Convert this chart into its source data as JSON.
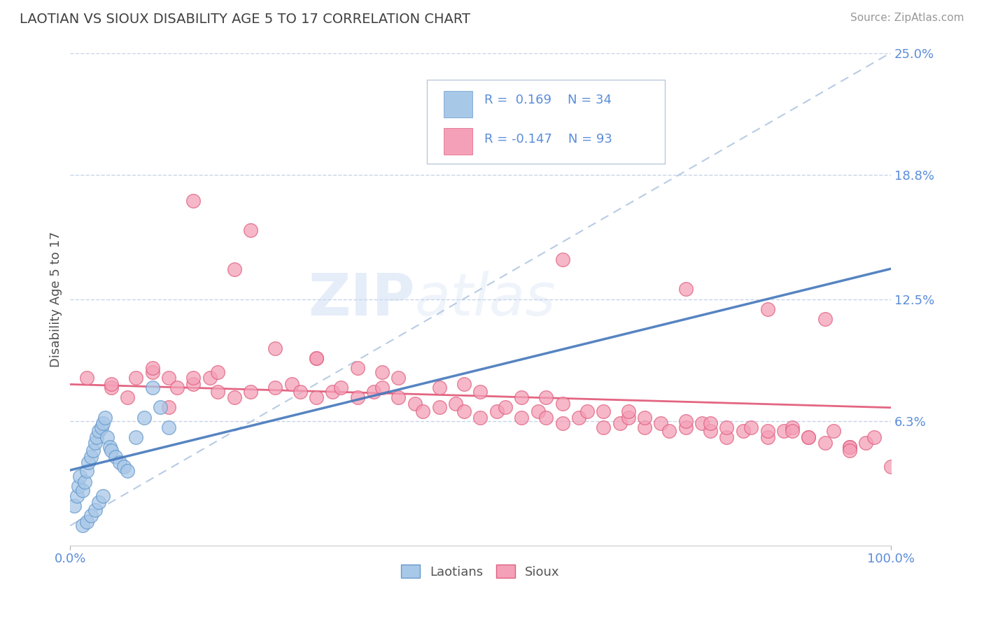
{
  "title": "LAOTIAN VS SIOUX DISABILITY AGE 5 TO 17 CORRELATION CHART",
  "source": "Source: ZipAtlas.com",
  "ylabel": "Disability Age 5 to 17",
  "xlim": [
    0,
    1.0
  ],
  "ylim": [
    0,
    0.25
  ],
  "ytick_vals": [
    0.063,
    0.125,
    0.188,
    0.25
  ],
  "ytick_labels": [
    "6.3%",
    "12.5%",
    "18.8%",
    "25.0%"
  ],
  "xtick_vals": [
    0.0,
    1.0
  ],
  "xtick_labels": [
    "0.0%",
    "100.0%"
  ],
  "laotian_color": "#a8c8e8",
  "laotian_edge": "#6699cc",
  "sioux_color": "#f4a0b8",
  "sioux_edge": "#e06080",
  "trend_laotian_color": "#4477bb",
  "trend_sioux_color": "#e05575",
  "trend_ref_color": "#b8cce4",
  "R_laotian": 0.169,
  "N_laotian": 34,
  "R_sioux": -0.147,
  "N_sioux": 93,
  "laotian_x": [
    0.005,
    0.008,
    0.01,
    0.012,
    0.015,
    0.018,
    0.02,
    0.022,
    0.025,
    0.028,
    0.03,
    0.032,
    0.035,
    0.038,
    0.04,
    0.042,
    0.045,
    0.048,
    0.05,
    0.055,
    0.06,
    0.065,
    0.07,
    0.08,
    0.09,
    0.1,
    0.11,
    0.12,
    0.015,
    0.02,
    0.025,
    0.03,
    0.035,
    0.04
  ],
  "laotian_y": [
    0.02,
    0.025,
    0.03,
    0.035,
    0.028,
    0.032,
    0.038,
    0.042,
    0.045,
    0.048,
    0.052,
    0.055,
    0.058,
    0.06,
    0.062,
    0.065,
    0.055,
    0.05,
    0.048,
    0.045,
    0.042,
    0.04,
    0.038,
    0.055,
    0.065,
    0.08,
    0.07,
    0.06,
    0.01,
    0.012,
    0.015,
    0.018,
    0.022,
    0.025
  ],
  "sioux_x": [
    0.02,
    0.05,
    0.07,
    0.08,
    0.1,
    0.12,
    0.13,
    0.15,
    0.17,
    0.18,
    0.2,
    0.22,
    0.25,
    0.27,
    0.28,
    0.3,
    0.32,
    0.33,
    0.35,
    0.37,
    0.38,
    0.4,
    0.42,
    0.43,
    0.45,
    0.47,
    0.48,
    0.5,
    0.52,
    0.53,
    0.55,
    0.57,
    0.58,
    0.6,
    0.62,
    0.63,
    0.65,
    0.67,
    0.68,
    0.7,
    0.72,
    0.73,
    0.75,
    0.77,
    0.78,
    0.8,
    0.82,
    0.83,
    0.85,
    0.87,
    0.88,
    0.9,
    0.92,
    0.93,
    0.95,
    0.97,
    0.98,
    1.0,
    0.1,
    0.15,
    0.2,
    0.25,
    0.3,
    0.35,
    0.4,
    0.45,
    0.5,
    0.55,
    0.6,
    0.65,
    0.7,
    0.75,
    0.8,
    0.85,
    0.9,
    0.95,
    0.6,
    0.75,
    0.85,
    0.92,
    0.15,
    0.22,
    0.3,
    0.38,
    0.48,
    0.58,
    0.68,
    0.78,
    0.88,
    0.95,
    0.05,
    0.12,
    0.18
  ],
  "sioux_y": [
    0.085,
    0.08,
    0.075,
    0.085,
    0.088,
    0.085,
    0.08,
    0.082,
    0.085,
    0.088,
    0.075,
    0.078,
    0.08,
    0.082,
    0.078,
    0.075,
    0.078,
    0.08,
    0.075,
    0.078,
    0.08,
    0.075,
    0.072,
    0.068,
    0.07,
    0.072,
    0.068,
    0.065,
    0.068,
    0.07,
    0.065,
    0.068,
    0.065,
    0.062,
    0.065,
    0.068,
    0.06,
    0.062,
    0.065,
    0.06,
    0.062,
    0.058,
    0.06,
    0.062,
    0.058,
    0.055,
    0.058,
    0.06,
    0.055,
    0.058,
    0.06,
    0.055,
    0.052,
    0.058,
    0.05,
    0.052,
    0.055,
    0.04,
    0.09,
    0.085,
    0.14,
    0.1,
    0.095,
    0.09,
    0.085,
    0.08,
    0.078,
    0.075,
    0.072,
    0.068,
    0.065,
    0.063,
    0.06,
    0.058,
    0.055,
    0.05,
    0.145,
    0.13,
    0.12,
    0.115,
    0.175,
    0.16,
    0.095,
    0.088,
    0.082,
    0.075,
    0.068,
    0.062,
    0.058,
    0.048,
    0.082,
    0.07,
    0.078
  ],
  "watermark_zip": "ZIP",
  "watermark_atlas": "atlas",
  "background_color": "#ffffff",
  "grid_color": "#c8d4e8",
  "title_color": "#404040",
  "axis_label_color": "#5b8dd9",
  "ylabel_color": "#505050"
}
